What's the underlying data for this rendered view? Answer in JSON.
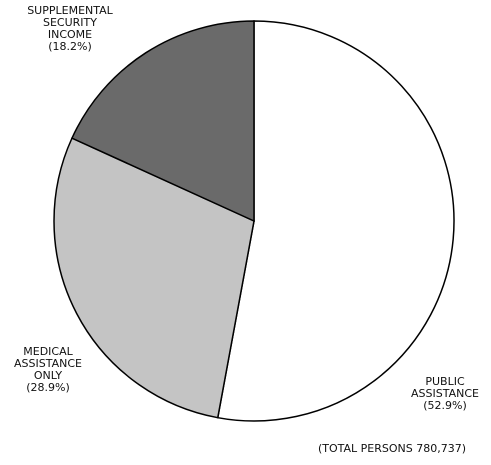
{
  "chart_data": {
    "type": "pie",
    "categories": [
      "PUBLIC ASSISTANCE",
      "MEDICAL ASSISTANCE ONLY",
      "SUPPLEMENTAL SECURITY INCOME"
    ],
    "values": [
      52.9,
      28.9,
      18.2
    ],
    "value_labels": [
      "(52.9%)",
      "(28.9%)",
      "(18.2%)"
    ],
    "colors": [
      "#ffffff",
      "#c4c4c4",
      "#6a6a6a"
    ],
    "annotation": "(TOTAL PERSONS 780,737)"
  }
}
